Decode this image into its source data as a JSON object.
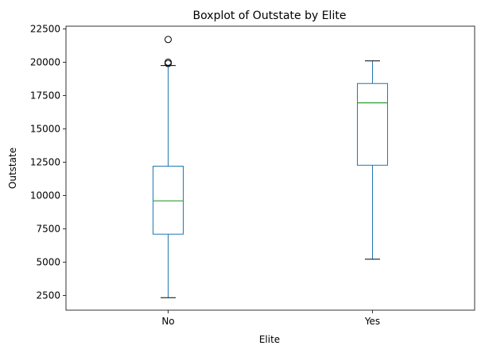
{
  "chart_data": {
    "type": "box",
    "title": "Boxplot of Outstate by Elite",
    "xlabel": "Elite",
    "ylabel": "Outstate",
    "categories": [
      "No",
      "Yes"
    ],
    "ylim": [
      1400,
      22700
    ],
    "yticks": [
      2500,
      5000,
      7500,
      10000,
      12500,
      15000,
      17500,
      20000,
      22500
    ],
    "ytick_labels": [
      "2500",
      "5000",
      "7500",
      "10000",
      "12500",
      "15000",
      "17500",
      "20000",
      "22500"
    ],
    "grid": false,
    "colors": {
      "box": "#1f77b4",
      "median": "#2ca02c",
      "whisker": "#1f77b4",
      "cap": "#000000",
      "outlier": "#000000"
    },
    "boxes": [
      {
        "label": "No",
        "whisker_low": 2340,
        "q1": 7100,
        "median": 9600,
        "q3": 12200,
        "whisker_high": 19750,
        "outliers": [
          19900,
          20000,
          21700
        ]
      },
      {
        "label": "Yes",
        "whisker_low": 5224,
        "q1": 12270,
        "median": 16950,
        "q3": 18400,
        "whisker_high": 20100,
        "outliers": []
      }
    ]
  }
}
